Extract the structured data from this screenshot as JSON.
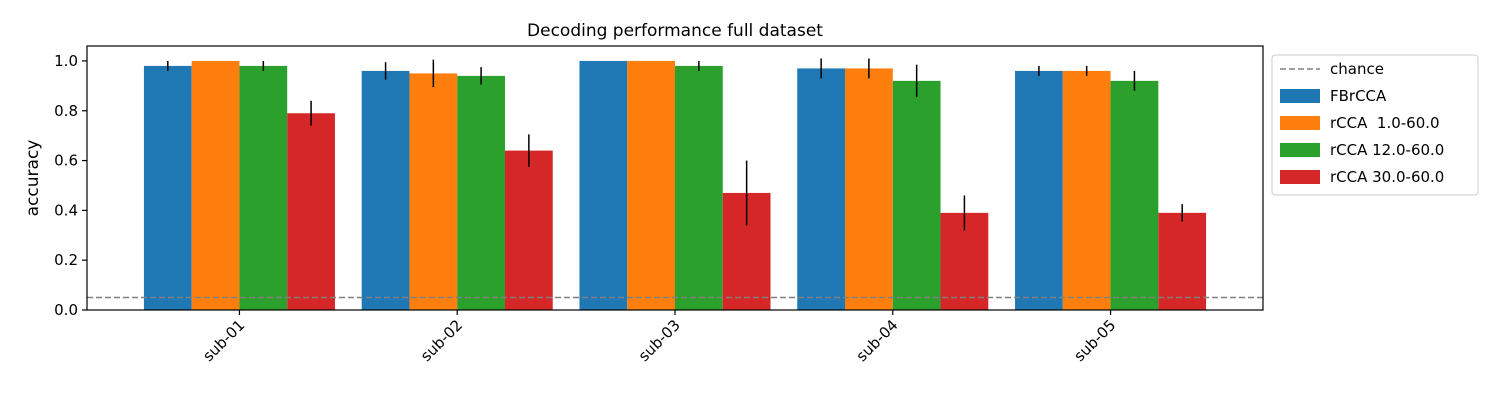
{
  "chart_data": {
    "type": "bar",
    "title": "Decoding performance full dataset",
    "xlabel": "",
    "ylabel": "accuracy",
    "ylim": [
      0,
      1.06
    ],
    "yticks": [
      0.0,
      0.2,
      0.4,
      0.6,
      0.8,
      1.0
    ],
    "ytick_labels": [
      "0.0",
      "0.2",
      "0.4",
      "0.6",
      "0.8",
      "1.0"
    ],
    "categories": [
      "sub-01",
      "sub-02",
      "sub-03",
      "sub-04",
      "sub-05"
    ],
    "series": [
      {
        "name": "FBrCCA",
        "color": "#1f77b4",
        "values": [
          0.98,
          0.96,
          1.0,
          0.97,
          0.96
        ],
        "errors": [
          0.02,
          0.035,
          0.0,
          0.04,
          0.02
        ]
      },
      {
        "name": "rCCA  1.0-60.0",
        "color": "#ff7f0e",
        "values": [
          1.0,
          0.95,
          1.0,
          0.97,
          0.96
        ],
        "errors": [
          0.0,
          0.055,
          0.0,
          0.04,
          0.02
        ]
      },
      {
        "name": "rCCA 12.0-60.0",
        "color": "#2ca02c",
        "values": [
          0.98,
          0.94,
          0.98,
          0.92,
          0.92
        ],
        "errors": [
          0.02,
          0.035,
          0.02,
          0.065,
          0.04
        ]
      },
      {
        "name": "rCCA 30.0-60.0",
        "color": "#d62728",
        "values": [
          0.79,
          0.64,
          0.47,
          0.39,
          0.39
        ],
        "errors": [
          0.05,
          0.065,
          0.13,
          0.07,
          0.035
        ]
      }
    ],
    "chance": {
      "name": "chance",
      "value": 0.05,
      "color": "#808080"
    },
    "legend_position": "outside-right-top",
    "grid": false
  }
}
